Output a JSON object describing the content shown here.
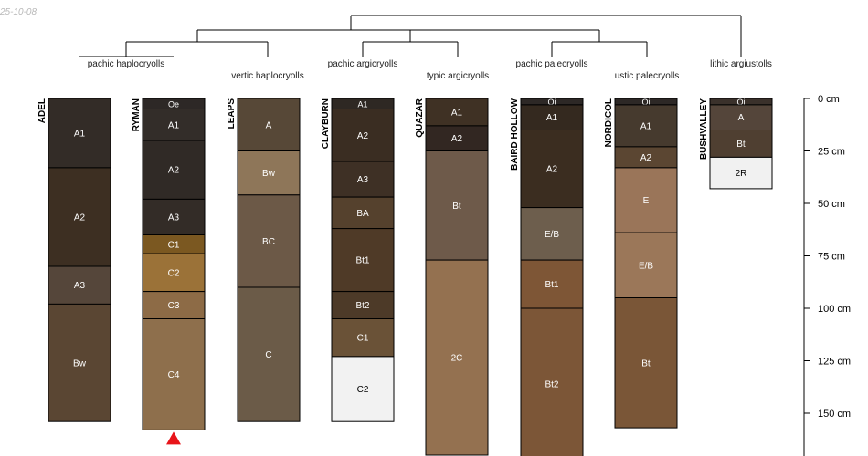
{
  "stamp": "25-10-08",
  "chart_data": {
    "type": "soil-profile-sketch",
    "title": "",
    "axis": {
      "label": "cm",
      "range": [
        0,
        170
      ],
      "ticks": [
        0,
        25,
        50,
        75,
        100,
        125,
        150
      ]
    },
    "classes": [
      "pachic haplocryolls",
      "vertic haplocryolls",
      "pachic argicryolls",
      "typic argicryolls",
      "pachic palecryolls",
      "ustic palecryolls",
      "lithic argiustolls"
    ],
    "profiles": [
      {
        "name": "ADEL",
        "class": "pachic haplocryolls",
        "horizons": [
          {
            "name": "A1",
            "top": 0,
            "bottom": 33,
            "color": "#332c27"
          },
          {
            "name": "A2",
            "top": 33,
            "bottom": 80,
            "color": "#3d2f22"
          },
          {
            "name": "A3",
            "top": 80,
            "bottom": 98,
            "color": "#55463a"
          },
          {
            "name": "Bw",
            "top": 98,
            "bottom": 154,
            "color": "#5a4633"
          }
        ]
      },
      {
        "name": "RYMAN",
        "class": "pachic haplocryolls",
        "horizons": [
          {
            "name": "Oe",
            "top": 0,
            "bottom": 5,
            "color": "#2d2826"
          },
          {
            "name": "A1",
            "top": 5,
            "bottom": 20,
            "color": "#332d29"
          },
          {
            "name": "A2",
            "top": 20,
            "bottom": 48,
            "color": "#302a26"
          },
          {
            "name": "A3",
            "top": 48,
            "bottom": 65,
            "color": "#332c27"
          },
          {
            "name": "C1",
            "top": 65,
            "bottom": 74,
            "color": "#7b5821"
          },
          {
            "name": "C2",
            "top": 74,
            "bottom": 92,
            "color": "#9b7238"
          },
          {
            "name": "C3",
            "top": 92,
            "bottom": 105,
            "color": "#8d6b46"
          },
          {
            "name": "C4",
            "top": 105,
            "bottom": 158,
            "color": "#8e6f4c"
          }
        ]
      },
      {
        "name": "LEAPS",
        "class": "vertic haplocryolls",
        "horizons": [
          {
            "name": "A",
            "top": 0,
            "bottom": 25,
            "color": "#574837"
          },
          {
            "name": "Bw",
            "top": 25,
            "bottom": 46,
            "color": "#8e7659"
          },
          {
            "name": "BC",
            "top": 46,
            "bottom": 90,
            "color": "#6c5947"
          },
          {
            "name": "C",
            "top": 90,
            "bottom": 154,
            "color": "#6b5b48"
          }
        ]
      },
      {
        "name": "CLAYBURN",
        "class": "pachic argicryolls",
        "horizons": [
          {
            "name": "A1",
            "top": 0,
            "bottom": 5,
            "color": "#2e2823"
          },
          {
            "name": "A2",
            "top": 5,
            "bottom": 30,
            "color": "#3a2d22"
          },
          {
            "name": "A3",
            "top": 30,
            "bottom": 47,
            "color": "#3e3025"
          },
          {
            "name": "BA",
            "top": 47,
            "bottom": 62,
            "color": "#55412d"
          },
          {
            "name": "Bt1",
            "top": 62,
            "bottom": 92,
            "color": "#4f3a27"
          },
          {
            "name": "Bt2",
            "top": 92,
            "bottom": 105,
            "color": "#4d3a28"
          },
          {
            "name": "C1",
            "top": 105,
            "bottom": 123,
            "color": "#6a5237"
          },
          {
            "name": "C2",
            "top": 123,
            "bottom": 154,
            "color": "#f2f2f2"
          }
        ]
      },
      {
        "name": "QUAZAR",
        "class": "typic argicryolls",
        "horizons": [
          {
            "name": "A1",
            "top": 0,
            "bottom": 13,
            "color": "#3f3124"
          },
          {
            "name": "A2",
            "top": 13,
            "bottom": 25,
            "color": "#322722"
          },
          {
            "name": "Bt",
            "top": 25,
            "bottom": 77,
            "color": "#6e5a4a"
          },
          {
            "name": "2C",
            "top": 77,
            "bottom": 170,
            "color": "#947150"
          }
        ]
      },
      {
        "name": "BAIRD HOLLOW",
        "class": "pachic palecryolls",
        "horizons": [
          {
            "name": "Oi",
            "top": 0,
            "bottom": 3,
            "color": "#2d2826"
          },
          {
            "name": "A1",
            "top": 3,
            "bottom": 15,
            "color": "#34291f"
          },
          {
            "name": "A2",
            "top": 15,
            "bottom": 52,
            "color": "#3b2d20"
          },
          {
            "name": "E/B",
            "top": 52,
            "bottom": 77,
            "color": "#6d5e4d"
          },
          {
            "name": "Bt1",
            "top": 77,
            "bottom": 100,
            "color": "#7e5636"
          },
          {
            "name": "Bt2",
            "top": 100,
            "bottom": 172,
            "color": "#7c5637"
          }
        ]
      },
      {
        "name": "NORDICOL",
        "class": "ustic palecryolls",
        "horizons": [
          {
            "name": "Oi",
            "top": 0,
            "bottom": 3,
            "color": "#2d2826"
          },
          {
            "name": "A1",
            "top": 3,
            "bottom": 23,
            "color": "#463a2e"
          },
          {
            "name": "A2",
            "top": 23,
            "bottom": 33,
            "color": "#5b4632"
          },
          {
            "name": "E",
            "top": 33,
            "bottom": 64,
            "color": "#9a7559"
          },
          {
            "name": "E/B",
            "top": 64,
            "bottom": 95,
            "color": "#9b7759"
          },
          {
            "name": "Bt",
            "top": 95,
            "bottom": 157,
            "color": "#7a5637"
          }
        ]
      },
      {
        "name": "BUSHVALLEY",
        "class": "lithic argiustolls",
        "horizons": [
          {
            "name": "Oi",
            "top": 0,
            "bottom": 3,
            "color": "#3a312b"
          },
          {
            "name": "A",
            "top": 3,
            "bottom": 15,
            "color": "#54453a"
          },
          {
            "name": "Bt",
            "top": 15,
            "bottom": 28,
            "color": "#4f3f31"
          },
          {
            "name": "2R",
            "top": 28,
            "bottom": 43,
            "color": "#f1f1f1"
          }
        ]
      }
    ],
    "markers": [
      {
        "profile": "RYMAN",
        "shape": "triangle",
        "color": "#e8141a"
      }
    ]
  }
}
